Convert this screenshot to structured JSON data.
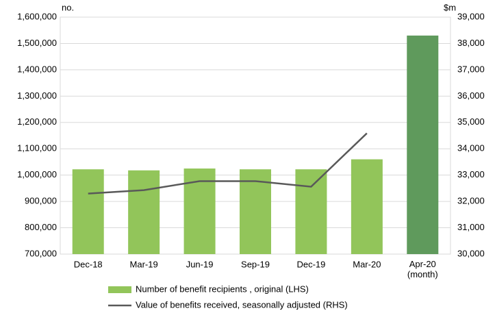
{
  "chart_data": {
    "type": "bar",
    "y_unit": "no.",
    "y2_unit": "$m",
    "categories": [
      "Dec-18",
      "Mar-19",
      "Jun-19",
      "Sep-19",
      "Dec-19",
      "Mar-20",
      "Apr-20\n(month)"
    ],
    "series": [
      {
        "name": "Number of benefit recipients , original (LHS)",
        "type": "bar",
        "color": "#92c55a",
        "colors": [
          "#92c55a",
          "#92c55a",
          "#92c55a",
          "#92c55a",
          "#92c55a",
          "#92c55a",
          "#5f9a5c"
        ],
        "values": [
          1022000,
          1018000,
          1025000,
          1022000,
          1022000,
          1060000,
          1530000
        ]
      },
      {
        "name": "Value of benefits received, seasonally adjusted (RHS)",
        "type": "line",
        "axis": "y2",
        "color": "#595959",
        "values": [
          32300,
          32430,
          32770,
          32770,
          32560,
          34590,
          null
        ]
      }
    ],
    "ylim": [
      700000,
      1600000
    ],
    "yticks": [
      {
        "value": 700000,
        "label": "700,000"
      },
      {
        "value": 800000,
        "label": "800,000"
      },
      {
        "value": 900000,
        "label": "900,000"
      },
      {
        "value": 1000000,
        "label": "1,000,000"
      },
      {
        "value": 1100000,
        "label": "1,100,000"
      },
      {
        "value": 1200000,
        "label": "1,200,000"
      },
      {
        "value": 1300000,
        "label": "1,300,000"
      },
      {
        "value": 1400000,
        "label": "1,400,000"
      },
      {
        "value": 1500000,
        "label": "1,500,000"
      },
      {
        "value": 1600000,
        "label": "1,600,000"
      }
    ],
    "y2lim": [
      30000,
      39000
    ],
    "y2ticks": [
      {
        "value": 30000,
        "label": "30,000"
      },
      {
        "value": 31000,
        "label": "31,000"
      },
      {
        "value": 32000,
        "label": "32,000"
      },
      {
        "value": 33000,
        "label": "33,000"
      },
      {
        "value": 34000,
        "label": "34,000"
      },
      {
        "value": 35000,
        "label": "35,000"
      },
      {
        "value": 36000,
        "label": "36,000"
      },
      {
        "value": 37000,
        "label": "37,000"
      },
      {
        "value": 38000,
        "label": "38,000"
      },
      {
        "value": 39000,
        "label": "39,000"
      }
    ],
    "grid": true
  }
}
